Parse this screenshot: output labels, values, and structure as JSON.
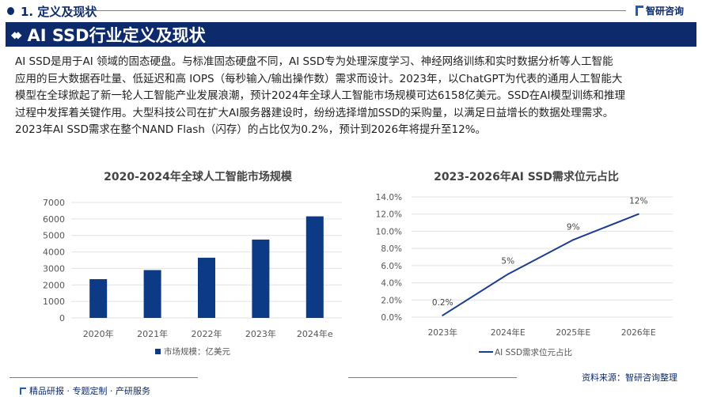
{
  "header": {
    "section_title": "1. 定义及现状",
    "brand": "智研咨询",
    "page_title": "AI SSD行业定义及现状"
  },
  "paragraph": {
    "lines": [
      "AI SSD是用于AI 领域的固态硬盘。与标准固态硬盘不同，AI SSD专为处理深度学习、神经网络训练和实时数据分析等人工智能",
      "应用的巨大数据吞吐量、低延迟和高 IOPS（每秒输入/输出操作数）需求而设计。2023年，以ChatGPT为代表的通用人工智能大",
      "模型在全球掀起了新一轮人工智能产业发展浪潮，预计2024年全球人工智能市场规模可达6158亿美元。SSD在AI模型训练和推理",
      "过程中发挥着关键作用。大型科技公司在扩大AI服务器建设时，纷纷选择增加SSD的采购量，以满足日益增长的数据处理需求。",
      "2023年AI SSD需求在整个NAND Flash（闪存）的占比仅为0.2%，预计到2026年将提升至12%。"
    ]
  },
  "chart_data": [
    {
      "type": "bar",
      "title": "2020-2024年全球人工智能市场规模",
      "categories": [
        "2020年",
        "2021年",
        "2022年",
        "2023年",
        "2024年e"
      ],
      "series": [
        {
          "name": "市场规模：亿美元",
          "values": [
            2350,
            2900,
            3650,
            4750,
            6158
          ]
        }
      ],
      "ylim": [
        0,
        7000
      ],
      "yticks": [
        "0",
        "1000",
        "2000",
        "3000",
        "4000",
        "5000",
        "6000",
        "7000"
      ],
      "grid": true,
      "legend": "bottom",
      "color": "#0d3a85"
    },
    {
      "type": "line",
      "title": "2023-2026年AI SSD需求位元占比",
      "categories": [
        "2023年",
        "2024年E",
        "2025年E",
        "2026年E"
      ],
      "series": [
        {
          "name": "AI SSD需求位元占比",
          "values": [
            0.2,
            5,
            9,
            12
          ],
          "labels": [
            "0.2%",
            "5%",
            "9%",
            "12%"
          ]
        }
      ],
      "ylim": [
        0,
        14
      ],
      "yticks": [
        "0.0%",
        "2.0%",
        "4.0%",
        "6.0%",
        "8.0%",
        "10.0%",
        "12.0%",
        "14.0%"
      ],
      "grid": true,
      "legend": "bottom",
      "color": "#1a3d8f"
    }
  ],
  "footer": {
    "source": "资料来源：智研咨询整理",
    "tagline": "精品研报 · 专题定制 · 产研服务"
  }
}
